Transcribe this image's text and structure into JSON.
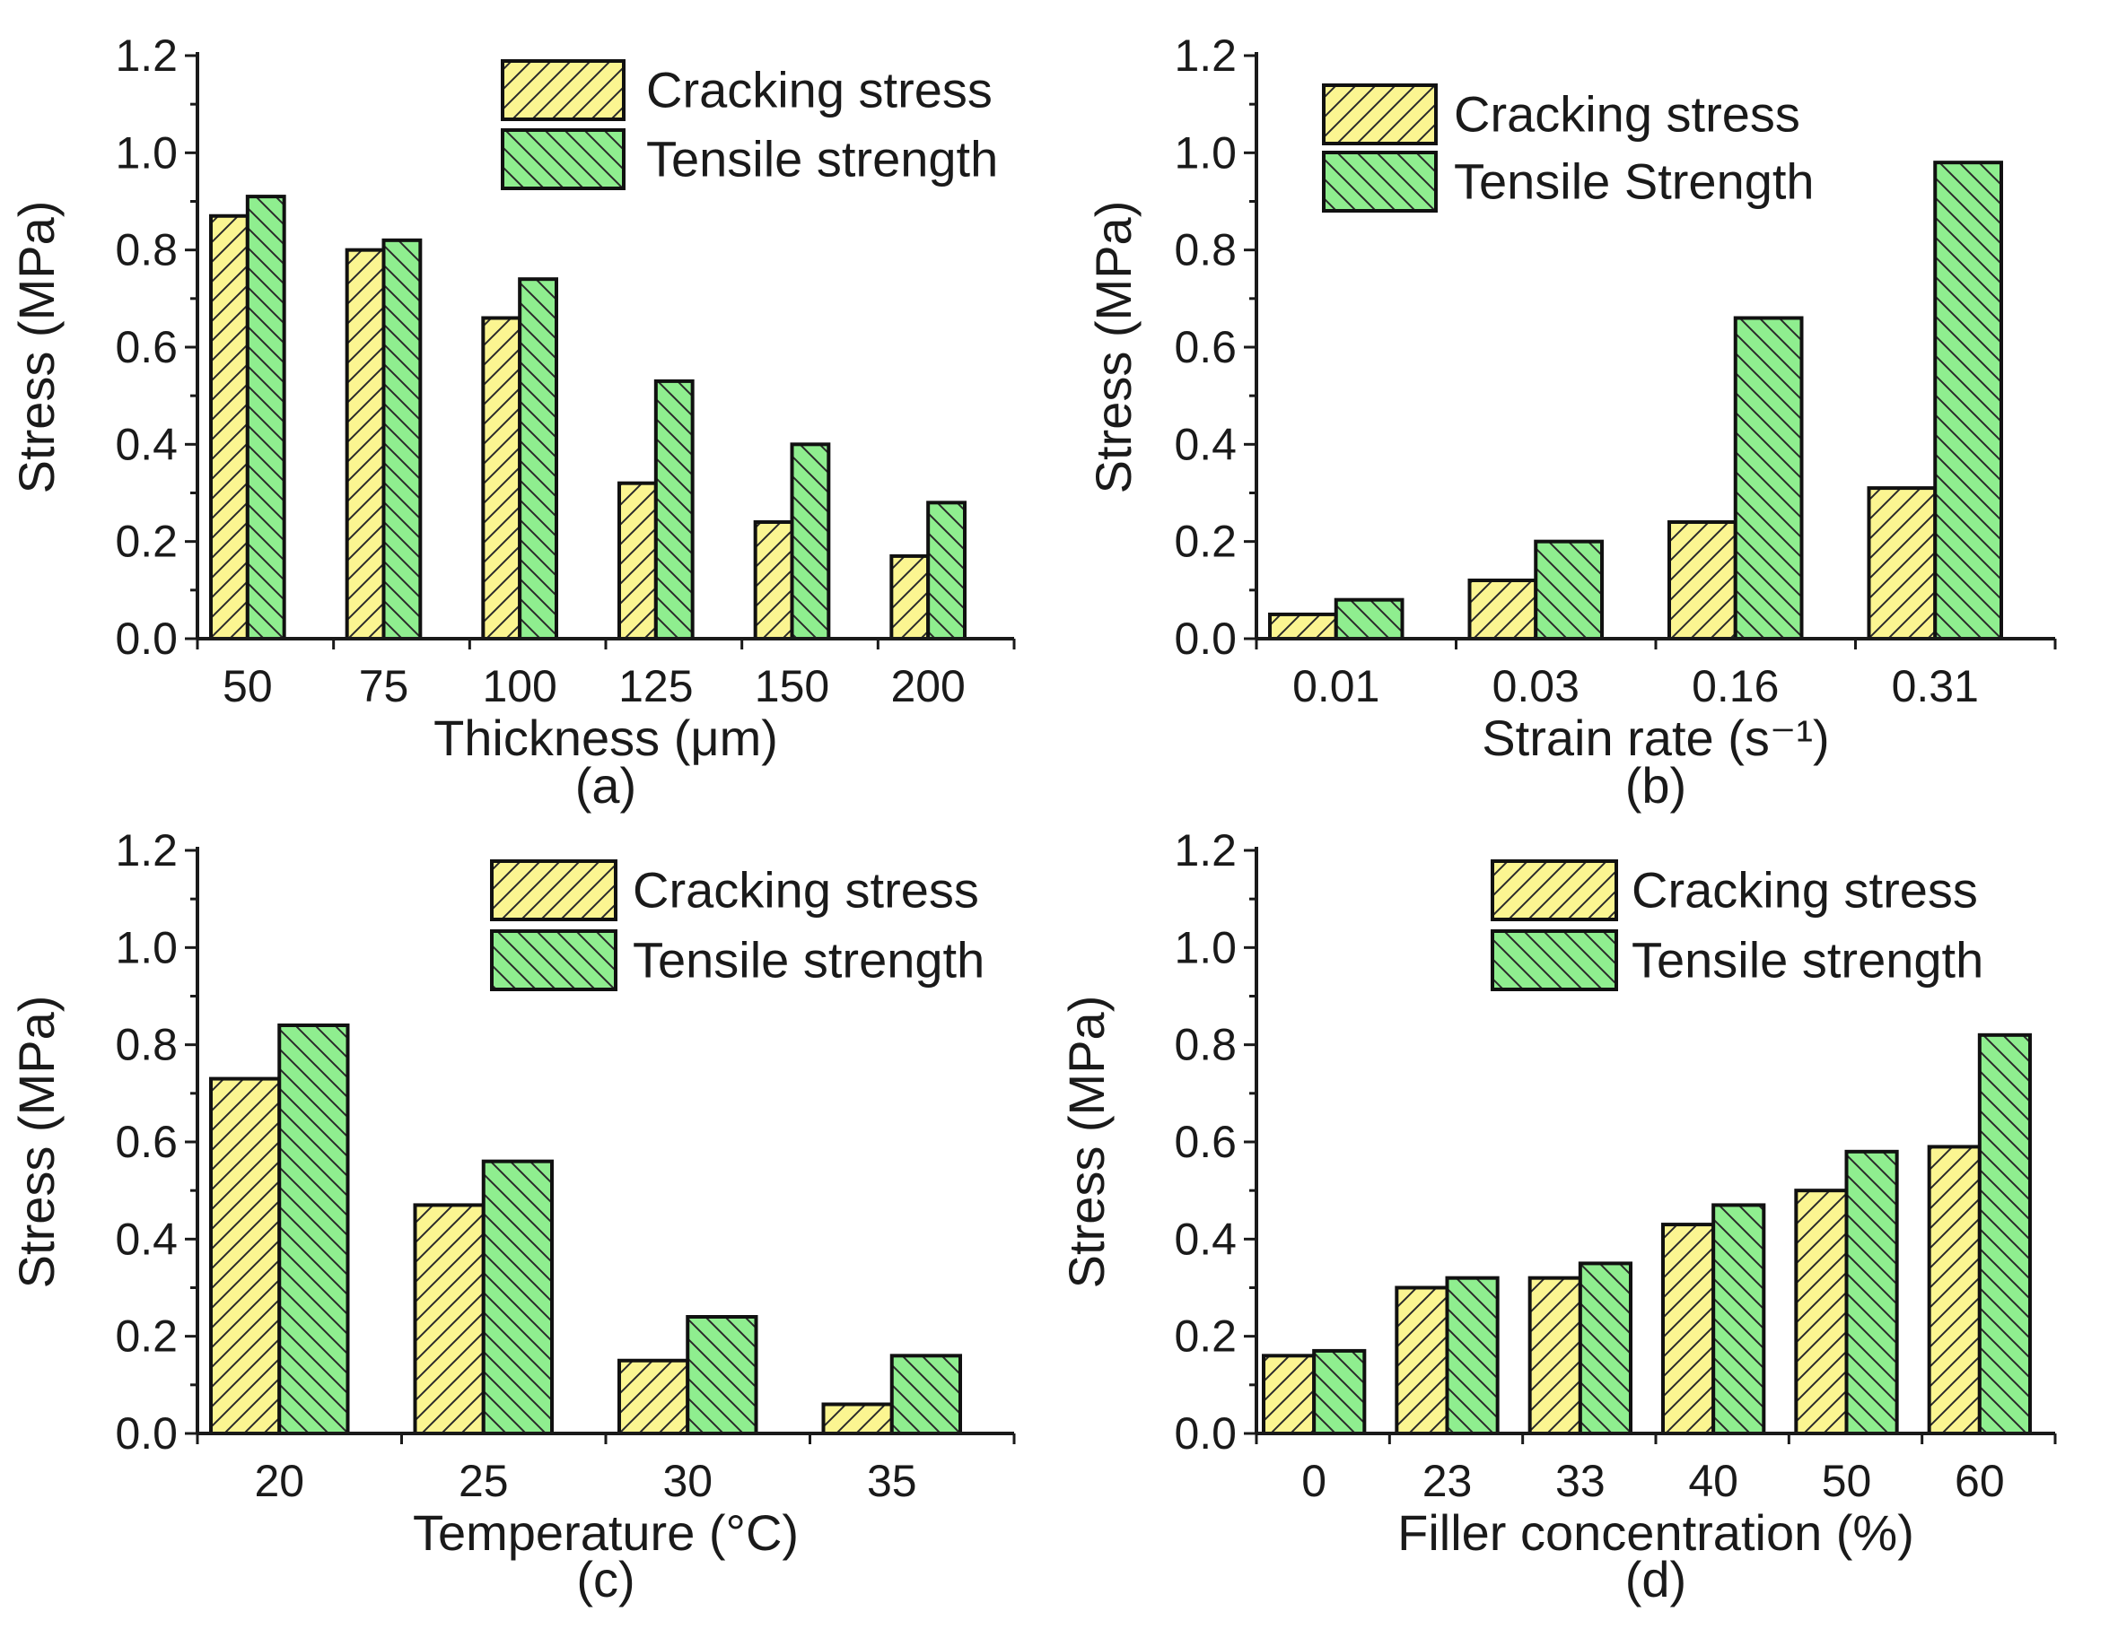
{
  "colors": {
    "cracking_fill": "#fbf591",
    "tensile_fill": "#8fee8f",
    "hatch": "#2a2a2a",
    "axis": "#1a1a1a"
  },
  "chart_data": [
    {
      "panel_label": "(a)",
      "type": "bar",
      "title": "",
      "xlabel": "Thickness (μm)",
      "ylabel": "Stress (MPa)",
      "ylim": [
        0,
        1.2
      ],
      "yticks": [
        "0.0",
        "0.2",
        "0.4",
        "0.6",
        "0.8",
        "1.0",
        "1.2"
      ],
      "categories": [
        "50",
        "75",
        "100",
        "125",
        "150",
        "200"
      ],
      "legend_position": "top-right",
      "series": [
        {
          "name": "Cracking stress",
          "values": [
            0.87,
            0.8,
            0.66,
            0.32,
            0.24,
            0.17
          ]
        },
        {
          "name": "Tensile strength",
          "values": [
            0.91,
            0.82,
            0.74,
            0.53,
            0.4,
            0.28
          ]
        }
      ]
    },
    {
      "panel_label": "(b)",
      "type": "bar",
      "title": "",
      "xlabel": "Strain rate (s⁻¹)",
      "ylabel": "Stress (MPa)",
      "ylim": [
        0,
        1.2
      ],
      "yticks": [
        "0.0",
        "0.2",
        "0.4",
        "0.6",
        "0.8",
        "1.0",
        "1.2"
      ],
      "categories": [
        "0.01",
        "0.03",
        "0.16",
        "0.31"
      ],
      "legend_position": "top-left",
      "series": [
        {
          "name": "Cracking stress",
          "values": [
            0.05,
            0.12,
            0.24,
            0.31
          ]
        },
        {
          "name": "Tensile Strength",
          "values": [
            0.08,
            0.2,
            0.66,
            0.98
          ]
        }
      ]
    },
    {
      "panel_label": "(c)",
      "type": "bar",
      "title": "",
      "xlabel": "Temperature (°C)",
      "ylabel": "Stress (MPa)",
      "ylim": [
        0,
        1.2
      ],
      "yticks": [
        "0.0",
        "0.2",
        "0.4",
        "0.6",
        "0.8",
        "1.0",
        "1.2"
      ],
      "categories": [
        "20",
        "25",
        "30",
        "35"
      ],
      "legend_position": "top-right",
      "series": [
        {
          "name": "Cracking stress",
          "values": [
            0.73,
            0.47,
            0.15,
            0.06
          ]
        },
        {
          "name": "Tensile strength",
          "values": [
            0.84,
            0.56,
            0.24,
            0.16
          ]
        }
      ]
    },
    {
      "panel_label": "(d)",
      "type": "bar",
      "title": "",
      "xlabel": "Filler concentration (%)",
      "ylabel": "Stress (MPa)",
      "ylim": [
        0,
        1.2
      ],
      "yticks": [
        "0.0",
        "0.2",
        "0.4",
        "0.6",
        "0.8",
        "1.0",
        "1.2"
      ],
      "categories": [
        "0",
        "23",
        "33",
        "40",
        "50",
        "60"
      ],
      "legend_position": "top-right",
      "series": [
        {
          "name": "Cracking stress",
          "values": [
            0.16,
            0.3,
            0.32,
            0.43,
            0.5,
            0.59
          ]
        },
        {
          "name": "Tensile strength",
          "values": [
            0.17,
            0.32,
            0.35,
            0.47,
            0.58,
            0.82
          ]
        }
      ]
    }
  ]
}
